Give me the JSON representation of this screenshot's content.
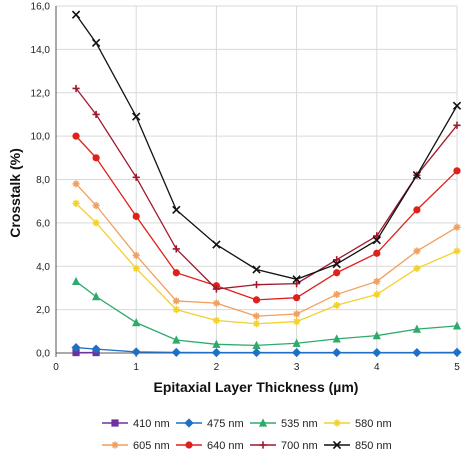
{
  "chart_data": {
    "type": "line",
    "xlabel": "Epitaxial Layer Thickness (µm)",
    "ylabel": "Crosstalk (%)",
    "xlim": [
      0,
      5
    ],
    "ylim": [
      0,
      16
    ],
    "x_ticks": [
      0,
      1,
      2,
      3,
      4,
      5
    ],
    "y_ticks": [
      0,
      2,
      4,
      6,
      8,
      10,
      12,
      14,
      16
    ],
    "y_tick_labels": [
      "0,0",
      "2,0",
      "4,0",
      "6,0",
      "8,0",
      "10,0",
      "12,0",
      "14,0",
      "16,0"
    ],
    "x_tick_labels": [
      "0",
      "1",
      "2",
      "3",
      "4",
      "5"
    ],
    "grid": "both",
    "legend_position": "bottom",
    "x": [
      0.25,
      0.5,
      1,
      1.5,
      2,
      2.5,
      3,
      3.5,
      4,
      4.5,
      5
    ],
    "series": [
      {
        "name": "410 nm",
        "color": "#7030A0",
        "marker": "square",
        "values": [
          0.02,
          0.02,
          null,
          null,
          null,
          null,
          null,
          null,
          null,
          null,
          null
        ]
      },
      {
        "name": "475 nm",
        "color": "#1F6FC5",
        "marker": "diamond",
        "values": [
          0.25,
          0.18,
          0.05,
          0.03,
          0.02,
          0.02,
          0.02,
          0.02,
          0.02,
          0.02,
          0.03
        ]
      },
      {
        "name": "535 nm",
        "color": "#2EAA6A",
        "marker": "triangle",
        "values": [
          3.3,
          2.6,
          1.4,
          0.6,
          0.4,
          0.35,
          0.45,
          0.65,
          0.8,
          1.1,
          1.25
        ]
      },
      {
        "name": "580 nm",
        "color": "#F2D12E",
        "marker": "star",
        "values": [
          6.9,
          6.0,
          3.9,
          2.0,
          1.5,
          1.35,
          1.45,
          2.2,
          2.7,
          3.9,
          4.7
        ]
      },
      {
        "name": "605 nm",
        "color": "#F0A060",
        "marker": "star",
        "values": [
          7.8,
          6.8,
          4.5,
          2.4,
          2.3,
          1.7,
          1.8,
          2.7,
          3.3,
          4.7,
          5.8
        ]
      },
      {
        "name": "640 nm",
        "color": "#E0201A",
        "marker": "circle",
        "values": [
          10.0,
          9.0,
          6.3,
          3.7,
          3.1,
          2.45,
          2.55,
          3.7,
          4.6,
          6.6,
          8.4
        ]
      },
      {
        "name": "700 nm",
        "color": "#A0182C",
        "marker": "plus",
        "values": [
          12.2,
          11.0,
          8.1,
          4.8,
          2.95,
          3.15,
          3.2,
          4.3,
          5.4,
          8.2,
          10.5
        ]
      },
      {
        "name": "850 nm",
        "color": "#111111",
        "marker": "x",
        "values": [
          15.6,
          14.3,
          10.9,
          6.6,
          5.0,
          3.85,
          3.4,
          4.1,
          5.2,
          8.2,
          11.4
        ]
      }
    ]
  }
}
